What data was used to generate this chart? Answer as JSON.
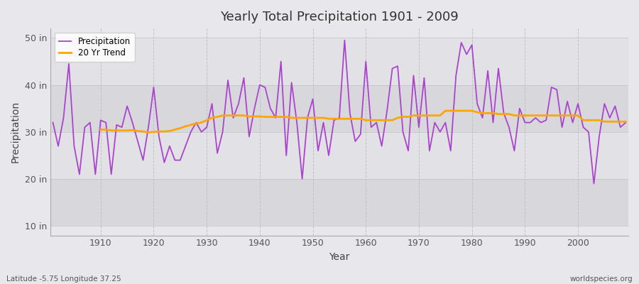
{
  "title": "Yearly Total Precipitation 1901 - 2009",
  "xlabel": "Year",
  "ylabel": "Precipitation",
  "bottom_left": "Latitude -5.75 Longitude 37.25",
  "bottom_right": "worldspecies.org",
  "legend_labels": [
    "Precipitation",
    "20 Yr Trend"
  ],
  "precip_color": "#AA44CC",
  "trend_color": "#FFA500",
  "outer_bg": "#E8E8EC",
  "band_dark": "#D8D8DC",
  "band_light": "#E2E2E6",
  "ylim": [
    8,
    52
  ],
  "yticks": [
    10,
    20,
    30,
    40,
    50
  ],
  "ytick_labels": [
    "10 in",
    "20 in",
    "30 in",
    "40 in",
    "50 in"
  ],
  "years": [
    1901,
    1902,
    1903,
    1904,
    1905,
    1906,
    1907,
    1908,
    1909,
    1910,
    1911,
    1912,
    1913,
    1914,
    1915,
    1916,
    1917,
    1918,
    1919,
    1920,
    1921,
    1922,
    1923,
    1924,
    1925,
    1926,
    1927,
    1928,
    1929,
    1930,
    1931,
    1932,
    1933,
    1934,
    1935,
    1936,
    1937,
    1938,
    1939,
    1940,
    1941,
    1942,
    1943,
    1944,
    1945,
    1946,
    1947,
    1948,
    1949,
    1950,
    1951,
    1952,
    1953,
    1954,
    1955,
    1956,
    1957,
    1958,
    1959,
    1960,
    1961,
    1962,
    1963,
    1964,
    1965,
    1966,
    1967,
    1968,
    1969,
    1970,
    1971,
    1972,
    1973,
    1974,
    1975,
    1976,
    1977,
    1978,
    1979,
    1980,
    1981,
    1982,
    1983,
    1984,
    1985,
    1986,
    1987,
    1988,
    1989,
    1990,
    1991,
    1992,
    1993,
    1994,
    1995,
    1996,
    1997,
    1998,
    1999,
    2000,
    2001,
    2002,
    2003,
    2004,
    2005,
    2006,
    2007,
    2008,
    2009
  ],
  "precip": [
    32.0,
    27.0,
    33.0,
    44.5,
    27.0,
    21.0,
    31.0,
    32.0,
    21.0,
    32.5,
    32.0,
    21.0,
    31.5,
    31.0,
    35.5,
    32.0,
    28.0,
    24.0,
    31.0,
    39.5,
    29.0,
    23.5,
    27.0,
    24.0,
    24.0,
    27.0,
    30.0,
    32.0,
    30.0,
    31.0,
    36.0,
    25.5,
    30.0,
    41.0,
    33.0,
    36.0,
    41.5,
    29.0,
    35.0,
    40.0,
    39.5,
    35.0,
    33.0,
    45.0,
    25.0,
    40.5,
    32.0,
    20.0,
    33.0,
    37.0,
    26.0,
    32.0,
    25.0,
    32.5,
    33.0,
    49.5,
    34.0,
    28.0,
    29.5,
    45.0,
    31.0,
    32.0,
    27.0,
    34.5,
    43.5,
    44.0,
    30.0,
    26.0,
    42.0,
    31.0,
    41.5,
    26.0,
    32.0,
    30.0,
    32.0,
    26.0,
    42.0,
    49.0,
    46.5,
    48.5,
    36.0,
    33.0,
    43.0,
    32.0,
    43.5,
    34.0,
    31.0,
    26.0,
    35.0,
    32.0,
    32.0,
    33.0,
    32.0,
    32.5,
    39.5,
    39.0,
    31.0,
    36.5,
    32.0,
    36.0,
    31.0,
    30.0,
    19.0,
    29.0,
    36.0,
    33.0,
    35.5,
    31.0,
    32.0
  ],
  "trend_years": [
    1910,
    1911,
    1912,
    1913,
    1914,
    1915,
    1916,
    1917,
    1918,
    1919,
    1920,
    1921,
    1922,
    1923,
    1924,
    1925,
    1926,
    1927,
    1928,
    1929,
    1930,
    1931,
    1932,
    1933,
    1934,
    1935,
    1936,
    1937,
    1938,
    1939,
    1940,
    1941,
    1942,
    1943,
    1944,
    1945,
    1946,
    1947,
    1948,
    1949,
    1950,
    1951,
    1952,
    1953,
    1954,
    1955,
    1956,
    1957,
    1958,
    1959,
    1960,
    1961,
    1962,
    1963,
    1964,
    1965,
    1966,
    1967,
    1968,
    1969,
    1970,
    1971,
    1972,
    1973,
    1974,
    1975,
    1976,
    1977,
    1978,
    1979,
    1980,
    1981,
    1982,
    1983,
    1984,
    1985,
    1986,
    1987,
    1988,
    1989,
    1990,
    1991,
    1992,
    1993,
    1994,
    1995,
    1996,
    1997,
    1998,
    1999,
    2000,
    2001,
    2002,
    2003,
    2004,
    2005,
    2006,
    2007,
    2008,
    2009
  ],
  "trend": [
    30.5,
    30.5,
    30.3,
    30.3,
    30.3,
    30.3,
    30.4,
    30.2,
    30.1,
    29.9,
    30.0,
    30.1,
    30.1,
    30.2,
    30.5,
    30.8,
    31.2,
    31.5,
    31.8,
    32.0,
    32.5,
    33.0,
    33.2,
    33.5,
    33.5,
    33.5,
    33.5,
    33.5,
    33.3,
    33.3,
    33.3,
    33.2,
    33.2,
    33.2,
    33.2,
    33.2,
    33.0,
    33.0,
    33.0,
    33.0,
    33.0,
    33.0,
    33.0,
    32.8,
    32.8,
    32.8,
    32.8,
    32.8,
    32.8,
    32.8,
    32.5,
    32.5,
    32.5,
    32.5,
    32.5,
    32.5,
    33.0,
    33.2,
    33.2,
    33.5,
    33.5,
    33.5,
    33.5,
    33.5,
    33.5,
    34.5,
    34.5,
    34.5,
    34.5,
    34.5,
    34.5,
    34.2,
    34.0,
    34.0,
    34.0,
    33.8,
    33.8,
    33.8,
    33.5,
    33.5,
    33.5,
    33.5,
    33.5,
    33.5,
    33.5,
    33.5,
    33.5,
    33.5,
    33.5,
    33.5,
    33.5,
    32.5,
    32.5,
    32.5,
    32.5,
    32.2,
    32.2,
    32.2,
    32.2,
    32.2
  ]
}
